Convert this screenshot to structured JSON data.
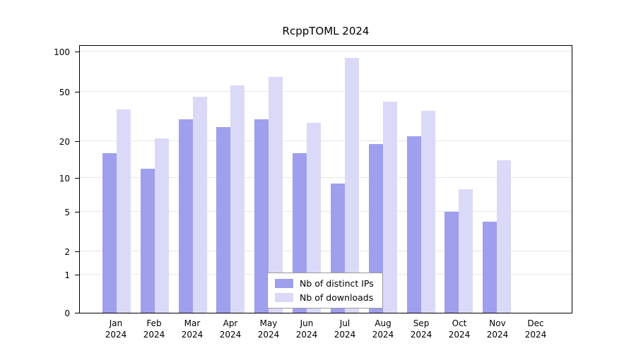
{
  "title": "RcppTOML 2024",
  "months": [
    {
      "label": "Jan",
      "year": "2024"
    },
    {
      "label": "Feb",
      "year": "2024"
    },
    {
      "label": "Mar",
      "year": "2024"
    },
    {
      "label": "Apr",
      "year": "2024"
    },
    {
      "label": "May",
      "year": "2024"
    },
    {
      "label": "Jun",
      "year": "2024"
    },
    {
      "label": "Jul",
      "year": "2024"
    },
    {
      "label": "Aug",
      "year": "2024"
    },
    {
      "label": "Sep",
      "year": "2024"
    },
    {
      "label": "Oct",
      "year": "2024"
    },
    {
      "label": "Nov",
      "year": "2024"
    },
    {
      "label": "Dec",
      "year": "2024"
    }
  ],
  "legend": {
    "items": [
      {
        "label": "Nb of distinct IPs"
      },
      {
        "label": "Nb of downloads"
      }
    ]
  },
  "colors": {
    "distinct_ips": "#9f9fee",
    "downloads": "#dadaf8",
    "grid": "#e7e7e7",
    "axis": "#000000"
  },
  "chart_data": {
    "type": "bar",
    "title": "RcppTOML 2024",
    "categories": [
      "Jan 2024",
      "Feb 2024",
      "Mar 2024",
      "Apr 2024",
      "May 2024",
      "Jun 2024",
      "Jul 2024",
      "Aug 2024",
      "Sep 2024",
      "Oct 2024",
      "Nov 2024",
      "Dec 2024"
    ],
    "series": [
      {
        "name": "Nb of distinct IPs",
        "color": "#9f9fee",
        "values": [
          16,
          12,
          30,
          26,
          30,
          16,
          9,
          19,
          22,
          5,
          4,
          0
        ]
      },
      {
        "name": "Nb of downloads",
        "color": "#dadaf8",
        "values": [
          36,
          21,
          46,
          56,
          65,
          28,
          90,
          42,
          35,
          8,
          14,
          0
        ]
      }
    ],
    "xlabel": "",
    "ylabel": "",
    "y_ticks": [
      0,
      1,
      2,
      5,
      10,
      20,
      50,
      100
    ],
    "y_scale": "log-like (non-linear, ticks at 0,1,2,5,10,20,50,100)",
    "ylim": [
      0,
      100
    ],
    "grid": true,
    "legend_position": "bottom-center-inside"
  }
}
